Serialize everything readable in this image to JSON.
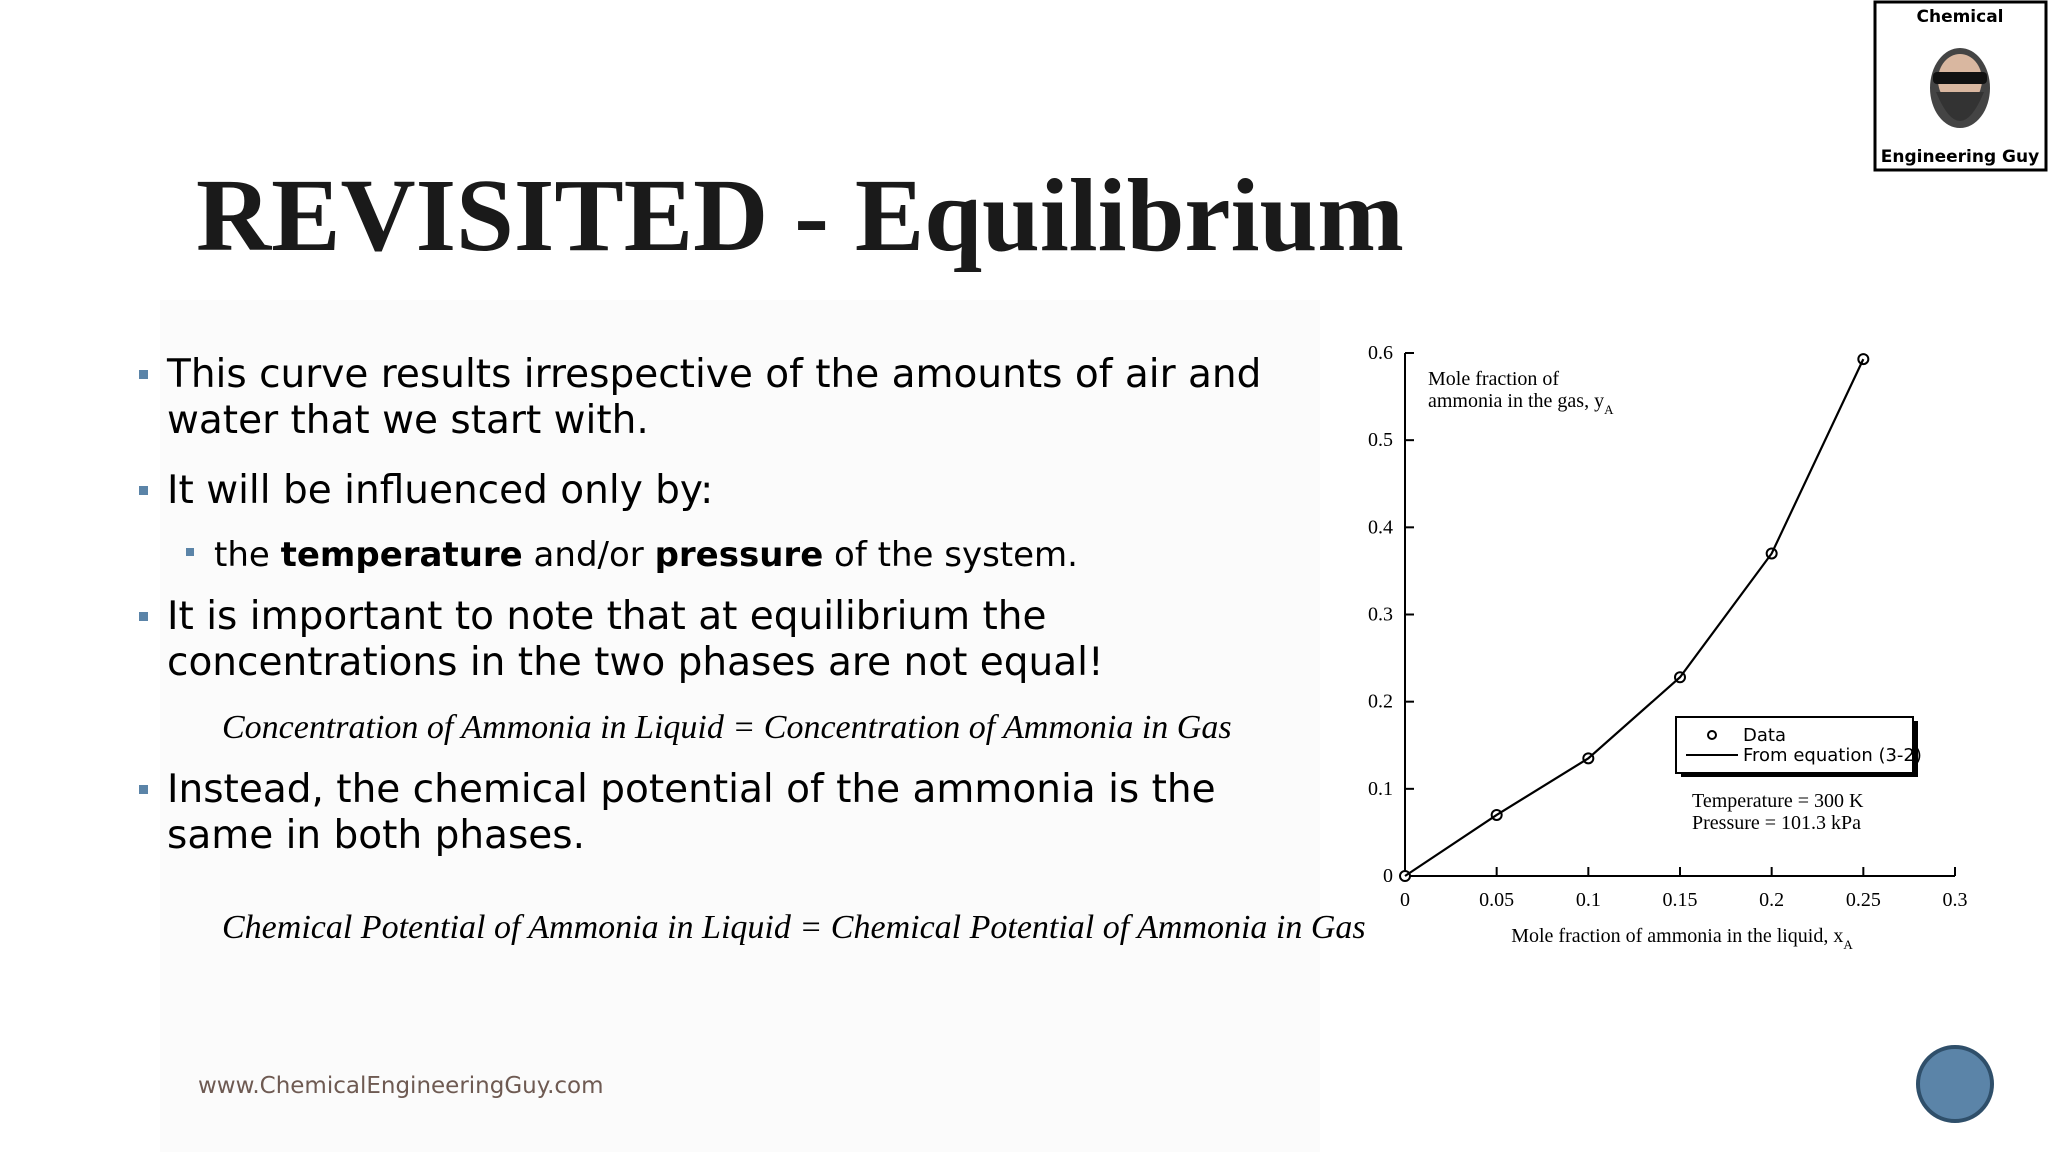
{
  "slide": {
    "title": "REVISITED - Equilibrium",
    "logo": {
      "top": "Chemical",
      "bottom": "Engineering Guy"
    },
    "bullets": [
      {
        "lines": [
          "This curve results irrespective of the amounts of air and",
          "water that we start with."
        ]
      },
      {
        "lines": [
          "It will be influenced only by:"
        ]
      },
      {
        "lines": [
          "It is important to note that at equilibrium the",
          "concentrations in the two phases are not equal!"
        ]
      },
      {
        "lines": [
          "Instead, the chemical potential of the ammonia is the",
          "same in both phases."
        ]
      }
    ],
    "sub_bullet": [
      {
        "text": "the "
      },
      {
        "text": "temperature",
        "bold": true
      },
      {
        "text": " and/or "
      },
      {
        "text": "pressure",
        "bold": true
      },
      {
        "text": " of the system."
      }
    ],
    "equations": [
      "Concentration of Ammonia in Liquid = Concentration of Ammonia in Gas",
      "Chemical Potential of Ammonia in Liquid = Chemical Potential of Ammonia in Gas"
    ],
    "footer": "www.ChemicalEngineeringGuy.com"
  },
  "chart_data": {
    "type": "line",
    "y_label": [
      "Mole fraction of",
      "ammonia in the gas, y"
    ],
    "y_label_subscript": "A",
    "x_label": "Mole fraction of ammonia in the liquid, x",
    "x_label_subscript": "A",
    "x": [
      0,
      0.05,
      0.1,
      0.15,
      0.2,
      0.25
    ],
    "series": [
      {
        "name": "Data",
        "color": "#000000",
        "marker": "circle",
        "values": [
          0,
          0.07,
          0.135,
          0.228,
          0.37,
          0.593
        ]
      },
      {
        "name": "From equation (3-2)",
        "color": "#000000",
        "marker": "none",
        "values": [
          0,
          0.07,
          0.135,
          0.228,
          0.37,
          0.593
        ]
      }
    ],
    "xlim": [
      0,
      0.3
    ],
    "ylim": [
      0,
      0.6
    ],
    "xticks": [
      0,
      0.05,
      0.1,
      0.15,
      0.2,
      0.25,
      0.3
    ],
    "yticks": [
      0,
      0.1,
      0.2,
      0.3,
      0.4,
      0.5,
      0.6
    ],
    "grid": false,
    "notes": [
      "Temperature = 300 K",
      "Pressure = 101.3 kPa"
    ]
  }
}
